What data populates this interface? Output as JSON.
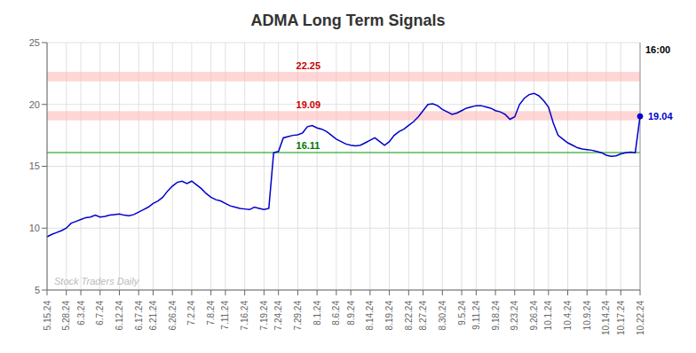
{
  "chart_data": {
    "type": "line",
    "title": "ADMA Long Term Signals",
    "categories": [
      "5.15.24",
      null,
      null,
      null,
      "5.28.24",
      null,
      null,
      "6.3.24",
      null,
      null,
      null,
      "6.7.24",
      null,
      null,
      null,
      "6.12.24",
      null,
      null,
      null,
      "6.17.24",
      null,
      null,
      "6.21.24",
      null,
      null,
      null,
      "6.26.24",
      null,
      null,
      null,
      "7.2.24",
      null,
      null,
      null,
      "7.8.24",
      null,
      null,
      "7.11.24",
      null,
      null,
      null,
      "7.16.24",
      null,
      null,
      null,
      "7.19.24",
      null,
      null,
      "7.24.24",
      null,
      null,
      null,
      "7.29.24",
      null,
      null,
      null,
      "8.1.24",
      null,
      null,
      null,
      "8.6.24",
      null,
      null,
      "8.9.24",
      null,
      null,
      null,
      "8.14.24",
      null,
      null,
      null,
      "8.19.24",
      null,
      null,
      null,
      "8.22.24",
      null,
      null,
      "8.27.24",
      null,
      null,
      null,
      "8.30.24",
      null,
      null,
      null,
      "9.5.24",
      null,
      null,
      "9.11.24",
      null,
      null,
      null,
      "9.18.24",
      null,
      null,
      null,
      "9.23.24",
      null,
      null,
      null,
      "9.26.24",
      null,
      null,
      "10.1.24",
      null,
      null,
      null,
      "10.4.24",
      null,
      null,
      null,
      "10.9.24",
      null,
      null,
      null,
      "10.14.24",
      null,
      null,
      "10.17.24",
      null,
      null,
      null,
      "10.22.24"
    ],
    "values": [
      9.3,
      9.5,
      9.65,
      9.8,
      10.0,
      10.4,
      10.55,
      10.7,
      10.85,
      10.9,
      11.05,
      10.9,
      10.95,
      11.05,
      11.1,
      11.15,
      11.05,
      11.0,
      11.1,
      11.3,
      11.5,
      11.7,
      12.0,
      12.2,
      12.5,
      13.0,
      13.4,
      13.7,
      13.8,
      13.6,
      13.8,
      13.5,
      13.2,
      12.8,
      12.5,
      12.3,
      12.2,
      12.0,
      11.8,
      11.7,
      11.6,
      11.55,
      11.5,
      11.7,
      11.6,
      11.5,
      11.6,
      16.1,
      16.2,
      17.3,
      17.4,
      17.5,
      17.55,
      17.7,
      18.2,
      18.3,
      18.1,
      18.0,
      17.8,
      17.5,
      17.2,
      17.0,
      16.8,
      16.7,
      16.65,
      16.7,
      16.9,
      17.1,
      17.3,
      17.0,
      16.7,
      17.0,
      17.5,
      17.8,
      18.0,
      18.3,
      18.6,
      19.0,
      19.5,
      20.0,
      20.05,
      19.9,
      19.6,
      19.4,
      19.2,
      19.3,
      19.5,
      19.7,
      19.8,
      19.9,
      19.9,
      19.8,
      19.7,
      19.5,
      19.4,
      19.2,
      18.8,
      19.0,
      20.0,
      20.5,
      20.8,
      20.9,
      20.7,
      20.3,
      19.8,
      18.5,
      17.5,
      17.2,
      16.9,
      16.7,
      16.5,
      16.4,
      16.35,
      16.3,
      16.2,
      16.1,
      15.9,
      15.8,
      15.85,
      16.0,
      16.1,
      16.15,
      16.1,
      19.04
    ],
    "color": "#0000cc",
    "ylim": [
      5,
      25
    ],
    "yticks": [
      5,
      10,
      15,
      20,
      25
    ],
    "grid": true,
    "bands": [
      {
        "y": 22.25,
        "half_height": 0.38,
        "label": "22.25",
        "color": "#ffbbbb",
        "label_color": "#cc0000"
      },
      {
        "y": 19.09,
        "half_height": 0.38,
        "label": "19.09",
        "color": "#ffbbbb",
        "label_color": "#cc0000"
      }
    ],
    "reference_line": {
      "y": 16.11,
      "label": "16.11",
      "color": "#009900",
      "label_color": "#007700"
    },
    "end_time_label": {
      "text": "16:00",
      "color": "#000000"
    },
    "end_price_label": {
      "text": "19.04",
      "color": "#0000cc"
    },
    "watermark": {
      "text": "Stock Traders Daily",
      "color": "#bbbbbb"
    }
  }
}
